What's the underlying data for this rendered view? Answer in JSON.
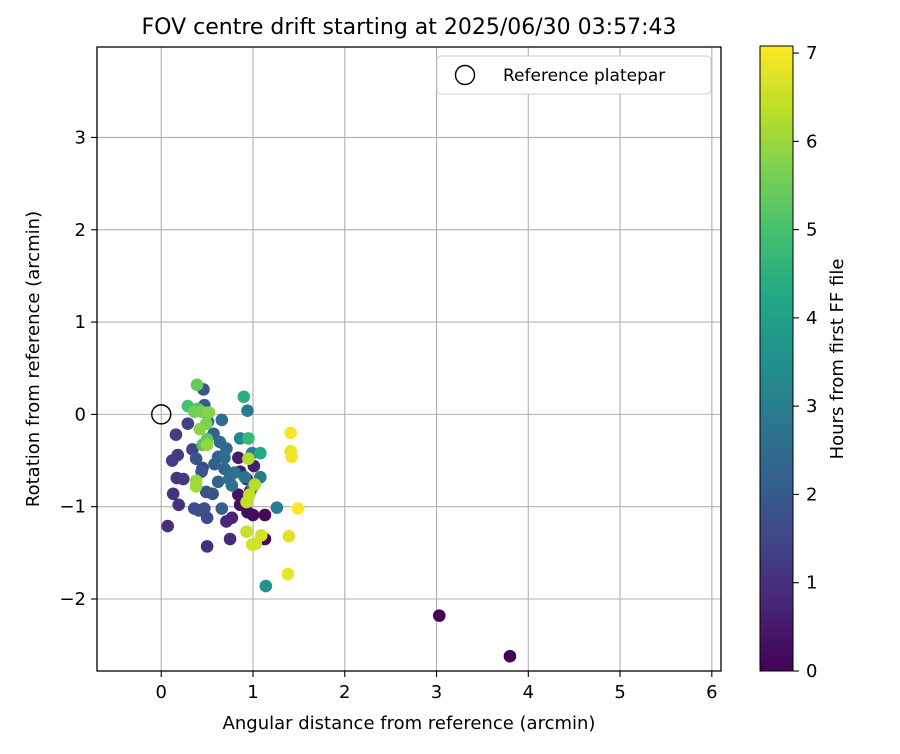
{
  "chart_data": {
    "type": "scatter",
    "title": "FOV centre drift starting at 2025/06/30 03:57:43",
    "xlabel": "Angular distance from reference (arcmin)",
    "ylabel": "Rotation from reference (arcmin)",
    "xlim": [
      -0.7,
      6.1
    ],
    "ylim": [
      -2.78,
      3.98
    ],
    "xticks": [
      0,
      1,
      2,
      3,
      4,
      5,
      6
    ],
    "yticks": [
      -2,
      -1,
      0,
      1,
      2,
      3
    ],
    "xtick_labels": [
      "0",
      "1",
      "2",
      "3",
      "4",
      "5",
      "6"
    ],
    "ytick_labels": [
      "−2",
      "−1",
      "0",
      "1",
      "2",
      "3"
    ],
    "grid": true,
    "legend": {
      "position": "top-right",
      "entries": [
        {
          "label": "Reference platepar",
          "marker": "open-circle"
        }
      ]
    },
    "reference_point": {
      "x": 0.0,
      "y": 0.0
    },
    "colorbar": {
      "label": "Hours from first FF file",
      "colormap": "viridis",
      "range": [
        0,
        7.08
      ],
      "ticks": [
        0,
        1,
        2,
        3,
        4,
        5,
        6,
        7
      ],
      "tick_labels": [
        "0",
        "1",
        "2",
        "3",
        "4",
        "5",
        "6",
        "7"
      ]
    },
    "series": [
      {
        "points": [
          [
            3.8,
            -2.62,
            0.0
          ],
          [
            3.03,
            -2.18,
            0.05
          ],
          [
            1.13,
            -1.35,
            0.1
          ],
          [
            1.13,
            -1.09,
            0.15
          ],
          [
            1.0,
            -1.09,
            0.2
          ],
          [
            0.94,
            -1.06,
            0.25
          ],
          [
            0.86,
            -0.98,
            0.3
          ],
          [
            0.84,
            -0.87,
            0.35
          ],
          [
            0.97,
            -0.83,
            0.4
          ],
          [
            0.93,
            -0.7,
            0.45
          ],
          [
            0.86,
            -0.62,
            0.5
          ],
          [
            0.84,
            -0.47,
            0.55
          ],
          [
            1.01,
            -0.56,
            0.6
          ],
          [
            0.77,
            -1.12,
            0.7
          ],
          [
            0.71,
            -1.16,
            0.8
          ],
          [
            0.75,
            -1.35,
            0.85
          ],
          [
            0.5,
            -1.43,
            0.9
          ],
          [
            0.07,
            -1.21,
            0.95
          ],
          [
            0.19,
            -0.98,
            1.0
          ],
          [
            0.13,
            -0.86,
            1.05
          ],
          [
            0.17,
            -0.69,
            1.1
          ],
          [
            0.24,
            -0.7,
            1.15
          ],
          [
            0.12,
            -0.5,
            1.2
          ],
          [
            0.18,
            -0.44,
            1.25
          ],
          [
            0.16,
            -0.22,
            1.3
          ],
          [
            0.29,
            -0.1,
            1.35
          ],
          [
            0.34,
            -0.38,
            1.4
          ],
          [
            0.45,
            -0.58,
            1.5
          ],
          [
            0.5,
            -1.12,
            1.55
          ],
          [
            0.41,
            -1.04,
            1.6
          ],
          [
            0.36,
            -1.02,
            1.65
          ],
          [
            0.47,
            -1.02,
            1.7
          ],
          [
            0.56,
            -0.86,
            1.75
          ],
          [
            0.49,
            -0.84,
            1.8
          ],
          [
            0.44,
            -0.62,
            1.85
          ],
          [
            0.38,
            -0.48,
            1.9
          ],
          [
            0.46,
            0.27,
            1.95
          ],
          [
            0.47,
            0.1,
            2.0
          ],
          [
            0.51,
            -0.08,
            2.05
          ],
          [
            0.57,
            -0.21,
            2.1
          ],
          [
            0.62,
            -0.46,
            2.15
          ],
          [
            0.58,
            -0.54,
            2.2
          ],
          [
            0.66,
            -1.02,
            2.25
          ],
          [
            0.62,
            -0.73,
            2.3
          ],
          [
            0.69,
            -0.59,
            2.35
          ],
          [
            0.71,
            -0.37,
            2.4
          ],
          [
            0.64,
            -0.3,
            2.45
          ],
          [
            0.66,
            -0.06,
            2.5
          ],
          [
            0.69,
            -0.47,
            2.55
          ],
          [
            0.74,
            -0.7,
            2.6
          ],
          [
            0.77,
            -0.77,
            2.65
          ],
          [
            0.8,
            -0.63,
            2.7
          ],
          [
            0.91,
            -0.68,
            2.75
          ],
          [
            1.0,
            -0.78,
            2.8
          ],
          [
            1.08,
            -0.68,
            2.85
          ],
          [
            0.94,
            0.04,
            2.9
          ],
          [
            0.99,
            -0.42,
            2.95
          ],
          [
            1.26,
            -1.01,
            3.0
          ],
          [
            0.86,
            -0.26,
            3.2
          ],
          [
            1.14,
            -1.86,
            3.6
          ],
          [
            1.08,
            -0.42,
            4.3
          ],
          [
            0.9,
            0.19,
            4.5
          ],
          [
            0.95,
            -0.26,
            4.7
          ],
          [
            0.29,
            0.09,
            5.0
          ],
          [
            0.4,
            0.06,
            5.1
          ],
          [
            0.45,
            -0.33,
            5.2
          ],
          [
            0.5,
            -0.27,
            5.3
          ],
          [
            0.39,
            0.32,
            5.4
          ],
          [
            0.36,
            0.03,
            5.5
          ],
          [
            0.44,
            0.03,
            5.6
          ],
          [
            0.49,
            -0.1,
            5.7
          ],
          [
            0.52,
            0.02,
            5.8
          ],
          [
            0.42,
            -0.16,
            5.85
          ],
          [
            0.5,
            -0.33,
            5.9
          ],
          [
            0.38,
            -0.72,
            6.0
          ],
          [
            0.38,
            -0.78,
            6.05
          ],
          [
            0.95,
            -0.48,
            6.2
          ],
          [
            1.02,
            -0.76,
            6.3
          ],
          [
            0.93,
            -0.95,
            6.4
          ],
          [
            0.96,
            -0.87,
            6.45
          ],
          [
            0.93,
            -1.27,
            6.5
          ],
          [
            1.03,
            -1.4,
            6.55
          ],
          [
            0.99,
            -1.41,
            6.6
          ],
          [
            1.09,
            -1.31,
            6.65
          ],
          [
            1.39,
            -1.32,
            6.75
          ],
          [
            1.38,
            -1.73,
            6.85
          ],
          [
            1.41,
            -0.4,
            6.9
          ],
          [
            1.42,
            -0.46,
            6.95
          ],
          [
            1.41,
            -0.2,
            7.0
          ],
          [
            1.49,
            -1.02,
            7.05
          ]
        ]
      }
    ]
  }
}
